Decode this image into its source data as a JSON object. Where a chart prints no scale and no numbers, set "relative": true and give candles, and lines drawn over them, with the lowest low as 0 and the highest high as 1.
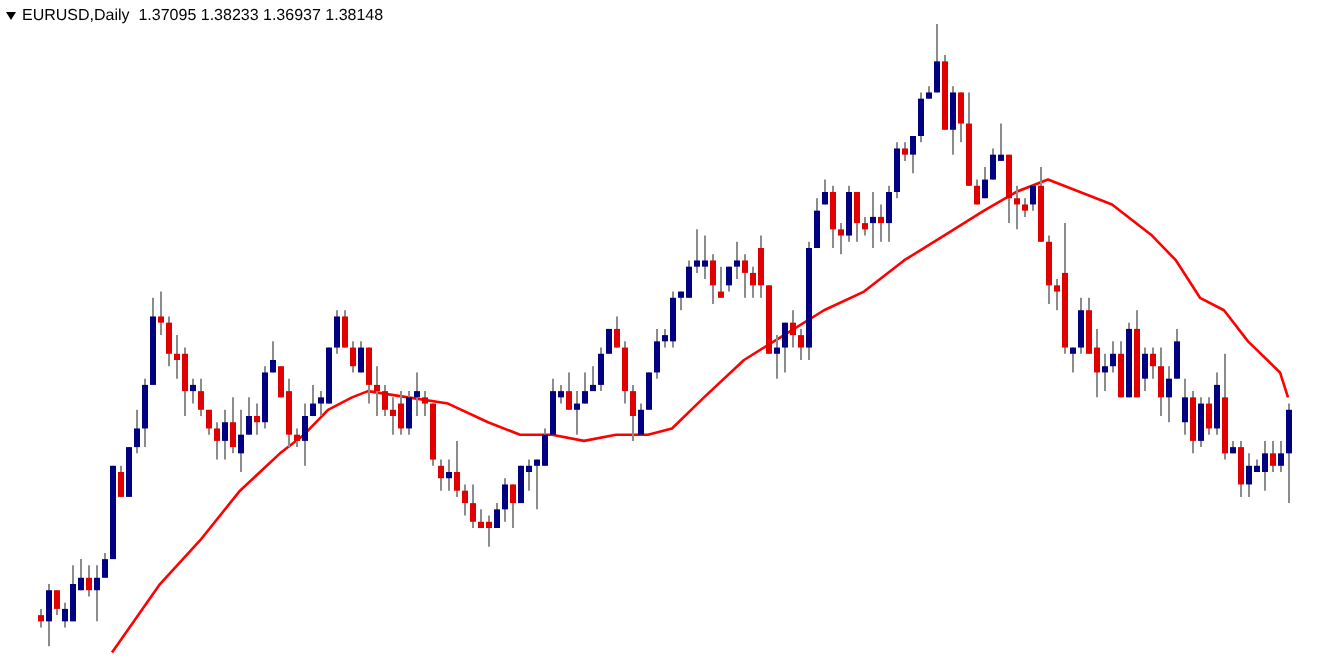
{
  "chart_data": {
    "type": "candlestick",
    "title": "EURUSD,Daily  1.37095 1.38233 1.36937 1.38148",
    "relative": true,
    "categories": [
      null,
      null,
      null,
      null,
      null,
      null,
      null,
      null,
      null,
      null,
      null,
      null,
      null,
      null,
      null,
      null,
      null,
      null,
      null,
      null,
      null,
      null,
      null,
      null,
      null,
      null,
      null,
      null,
      null,
      null,
      null,
      null,
      null,
      null,
      null,
      null,
      null,
      null,
      null,
      null,
      null,
      null,
      null,
      null,
      null,
      null,
      null,
      null,
      null,
      null,
      null,
      null,
      null,
      null,
      null,
      null,
      null,
      null,
      null,
      null,
      null,
      null,
      null,
      null,
      null,
      null,
      null,
      null,
      null,
      null,
      null,
      null,
      null,
      null,
      null,
      null,
      null,
      null,
      null,
      null,
      null,
      null,
      null,
      null,
      null,
      null,
      null,
      null,
      null,
      null,
      null,
      null,
      null,
      null,
      null,
      null,
      null,
      null,
      null,
      null,
      null,
      null,
      null,
      null,
      null,
      null,
      null,
      null,
      null,
      null,
      null,
      null,
      null,
      null,
      null,
      null,
      null,
      null,
      null,
      null,
      null,
      null,
      null,
      null,
      null,
      null,
      null,
      null,
      null,
      null,
      null,
      null,
      null,
      null,
      null,
      null,
      null,
      null,
      null,
      null,
      null,
      null,
      null,
      null,
      null,
      null,
      null,
      null,
      null,
      null,
      null,
      null,
      null,
      null,
      null,
      null,
      null
    ],
    "series": [
      {
        "colors": [
          "#e00000",
          "#000080",
          "#e00000",
          "#000080",
          "#000080",
          "#000080",
          "#e00000",
          "#000080",
          "#000080",
          "#000080",
          "#e00000",
          "#000080",
          "#000080",
          "#000080",
          "#000080",
          "#e00000",
          "#e00000",
          "#e00000",
          "#e00000",
          "#000080",
          "#e00000",
          "#e00000",
          "#e00000",
          "#000080",
          "#e00000",
          "#000080",
          "#000080",
          "#e00000",
          "#000080",
          "#000080",
          "#e00000",
          "#e00000",
          "#e00000",
          "#000080",
          "#000080",
          "#000080",
          "#000080",
          "#000080",
          "#e00000",
          "#e00000",
          "#000080",
          "#e00000",
          "#e00000",
          "#e00000",
          "#e00000",
          "#e00000",
          "#000080",
          "#000080",
          "#e00000",
          "#e00000",
          "#e00000",
          "#000080",
          "#e00000",
          "#e00000",
          "#e00000",
          "#e00000",
          "#e00000",
          "#000080",
          "#000080",
          "#e00000",
          "#000080",
          "#000080",
          "#000080",
          "#000080",
          "#000080",
          "#000080",
          "#e00000",
          "#000080",
          "#000080",
          "#000080",
          "#000080",
          "#000080",
          "#e00000",
          "#e00000",
          "#e00000",
          "#000080",
          "#000080",
          "#000080",
          "#000080",
          "#000080",
          "#000080",
          "#000080",
          "#000080",
          "#000080",
          "#e00000",
          "#e00000",
          "#000080",
          "#000080",
          "#e00000",
          "#e00000",
          "#e00000",
          "#e00000",
          "#000080",
          "#000080",
          "#e00000",
          "#e00000",
          "#000080",
          "#000080",
          "#000080",
          "#e00000",
          "#e00000",
          "#000080",
          "#e00000",
          "#e00000",
          "#000080",
          "#e00000",
          "#000080",
          "#000080",
          "#e00000",
          "#000080",
          "#000080",
          "#000080",
          "#000080",
          "#e00000",
          "#000080",
          "#e00000",
          "#e00000",
          "#e00000",
          "#000080",
          "#000080",
          "#000080",
          "#e00000",
          "#e00000",
          "#e00000",
          "#000080",
          "#e00000",
          "#e00000",
          "#e00000",
          "#e00000",
          "#000080",
          "#000080",
          "#e00000",
          "#e00000",
          "#000080",
          "#000080",
          "#e00000",
          "#000080",
          "#e00000",
          "#000080",
          "#e00000",
          "#e00000",
          "#000080",
          "#000080",
          "#000080",
          "#e00000",
          "#000080",
          "#e00000",
          "#000080",
          "#e00000",
          "#000080",
          "#e00000",
          "#000080",
          "#000080",
          "#000080",
          "#e00000",
          "#000080",
          "#000080"
        ],
        "ohlc": [
          [
            0.05,
            0.06,
            0.03,
            0.04
          ],
          [
            0.04,
            0.1,
            0,
            0.09
          ],
          [
            0.09,
            0.09,
            0.05,
            0.06
          ],
          [
            0.04,
            0.07,
            0.03,
            0.06
          ],
          [
            0.04,
            0.13,
            0.04,
            0.1
          ],
          [
            0.09,
            0.14,
            0.09,
            0.11
          ],
          [
            0.11,
            0.13,
            0.08,
            0.09
          ],
          [
            0.09,
            0.13,
            0.04,
            0.11
          ],
          [
            0.11,
            0.15,
            0.11,
            0.14
          ],
          [
            0.14,
            0.29,
            0.14,
            0.29
          ],
          [
            0.28,
            0.29,
            0.24,
            0.24
          ],
          [
            0.24,
            0.32,
            0.24,
            0.32
          ],
          [
            0.32,
            0.38,
            0.31,
            0.35
          ],
          [
            0.35,
            0.43,
            0.32,
            0.42
          ],
          [
            0.42,
            0.56,
            0.42,
            0.53
          ],
          [
            0.53,
            0.57,
            0.5,
            0.52
          ],
          [
            0.52,
            0.53,
            0.45,
            0.47
          ],
          [
            0.47,
            0.5,
            0.43,
            0.46
          ],
          [
            0.47,
            0.48,
            0.37,
            0.41
          ],
          [
            0.41,
            0.43,
            0.39,
            0.42
          ],
          [
            0.41,
            0.43,
            0.37,
            0.38
          ],
          [
            0.38,
            0.38,
            0.34,
            0.35
          ],
          [
            0.35,
            0.36,
            0.3,
            0.33
          ],
          [
            0.33,
            0.38,
            0.3,
            0.36
          ],
          [
            0.36,
            0.4,
            0.31,
            0.32
          ],
          [
            0.31,
            0.38,
            0.28,
            0.34
          ],
          [
            0.34,
            0.4,
            0.34,
            0.37
          ],
          [
            0.37,
            0.39,
            0.34,
            0.36
          ],
          [
            0.36,
            0.45,
            0.35,
            0.44
          ],
          [
            0.44,
            0.49,
            0.44,
            0.46
          ],
          [
            0.45,
            0.45,
            0.4,
            0.4
          ],
          [
            0.41,
            0.43,
            0.32,
            0.34
          ],
          [
            0.34,
            0.35,
            0.32,
            0.33
          ],
          [
            0.33,
            0.39,
            0.29,
            0.37
          ],
          [
            0.37,
            0.42,
            0.37,
            0.39
          ],
          [
            0.39,
            0.41,
            0.37,
            0.4
          ],
          [
            0.39,
            0.48,
            0.39,
            0.48
          ],
          [
            0.48,
            0.54,
            0.47,
            0.53
          ],
          [
            0.53,
            0.54,
            0.48,
            0.48
          ],
          [
            0.48,
            0.49,
            0.44,
            0.45
          ],
          [
            0.44,
            0.49,
            0.44,
            0.48
          ],
          [
            0.48,
            0.48,
            0.39,
            0.42
          ],
          [
            0.42,
            0.45,
            0.37,
            0.41
          ],
          [
            0.41,
            0.42,
            0.37,
            0.38
          ],
          [
            0.38,
            0.4,
            0.34,
            0.37
          ],
          [
            0.39,
            0.41,
            0.34,
            0.35
          ],
          [
            0.35,
            0.41,
            0.34,
            0.4
          ],
          [
            0.4,
            0.44,
            0.37,
            0.41
          ],
          [
            0.4,
            0.41,
            0.37,
            0.39
          ],
          [
            0.39,
            0.39,
            0.29,
            0.3
          ],
          [
            0.29,
            0.3,
            0.25,
            0.27
          ],
          [
            0.27,
            0.3,
            0.25,
            0.28
          ],
          [
            0.28,
            0.33,
            0.24,
            0.25
          ],
          [
            0.25,
            0.26,
            0.21,
            0.23
          ],
          [
            0.23,
            0.26,
            0.19,
            0.2
          ],
          [
            0.2,
            0.22,
            0.19,
            0.19
          ],
          [
            0.2,
            0.21,
            0.16,
            0.19
          ],
          [
            0.19,
            0.23,
            0.19,
            0.22
          ],
          [
            0.22,
            0.27,
            0.2,
            0.26
          ],
          [
            0.26,
            0.26,
            0.19,
            0.23
          ],
          [
            0.23,
            0.29,
            0.23,
            0.29
          ],
          [
            0.28,
            0.3,
            0.25,
            0.29
          ],
          [
            0.29,
            0.3,
            0.22,
            0.3
          ],
          [
            0.29,
            0.35,
            0.29,
            0.34
          ],
          [
            0.34,
            0.43,
            0.34,
            0.41
          ],
          [
            0.4,
            0.42,
            0.39,
            0.41
          ],
          [
            0.41,
            0.44,
            0.38,
            0.38
          ],
          [
            0.38,
            0.41,
            0.34,
            0.39
          ],
          [
            0.39,
            0.44,
            0.39,
            0.41
          ],
          [
            0.41,
            0.45,
            0.41,
            0.42
          ],
          [
            0.42,
            0.48,
            0.41,
            0.47
          ],
          [
            0.47,
            0.51,
            0.47,
            0.51
          ],
          [
            0.51,
            0.53,
            0.48,
            0.48
          ],
          [
            0.48,
            0.49,
            0.39,
            0.41
          ],
          [
            0.41,
            0.42,
            0.33,
            0.37
          ],
          [
            0.34,
            0.39,
            0.34,
            0.38
          ],
          [
            0.38,
            0.44,
            0.38,
            0.44
          ],
          [
            0.44,
            0.51,
            0.43,
            0.49
          ],
          [
            0.49,
            0.51,
            0.48,
            0.5
          ],
          [
            0.49,
            0.57,
            0.48,
            0.56
          ],
          [
            0.56,
            0.57,
            0.54,
            0.57
          ],
          [
            0.56,
            0.62,
            0.56,
            0.61
          ],
          [
            0.61,
            0.67,
            0.6,
            0.62
          ],
          [
            0.61,
            0.66,
            0.59,
            0.62
          ],
          [
            0.62,
            0.63,
            0.55,
            0.58
          ],
          [
            0.57,
            0.61,
            0.56,
            0.56
          ],
          [
            0.58,
            0.61,
            0.57,
            0.61
          ],
          [
            0.61,
            0.65,
            0.59,
            0.62
          ],
          [
            0.62,
            0.63,
            0.56,
            0.6
          ],
          [
            0.6,
            0.61,
            0.56,
            0.58
          ],
          [
            0.64,
            0.66,
            0.56,
            0.58
          ],
          [
            0.58,
            0.58,
            0.47,
            0.47
          ],
          [
            0.47,
            0.5,
            0.43,
            0.48
          ],
          [
            0.48,
            0.52,
            0.44,
            0.52
          ],
          [
            0.52,
            0.54,
            0.48,
            0.5
          ],
          [
            0.5,
            0.51,
            0.46,
            0.48
          ],
          [
            0.48,
            0.65,
            0.46,
            0.64
          ],
          [
            0.64,
            0.72,
            0.64,
            0.7
          ],
          [
            0.71,
            0.75,
            0.71,
            0.73
          ],
          [
            0.73,
            0.74,
            0.64,
            0.67
          ],
          [
            0.67,
            0.68,
            0.63,
            0.66
          ],
          [
            0.66,
            0.74,
            0.65,
            0.73
          ],
          [
            0.73,
            0.73,
            0.65,
            0.68
          ],
          [
            0.68,
            0.69,
            0.66,
            0.67
          ],
          [
            0.68,
            0.73,
            0.64,
            0.69
          ],
          [
            0.69,
            0.71,
            0.65,
            0.68
          ],
          [
            0.68,
            0.74,
            0.65,
            0.73
          ],
          [
            0.73,
            0.81,
            0.72,
            0.8
          ],
          [
            0.8,
            0.81,
            0.78,
            0.79
          ],
          [
            0.79,
            0.82,
            0.76,
            0.82
          ],
          [
            0.82,
            0.89,
            0.81,
            0.88
          ],
          [
            0.88,
            0.9,
            0.88,
            0.89
          ],
          [
            0.89,
            1,
            0.89,
            0.94
          ],
          [
            0.94,
            0.95,
            0.83,
            0.83
          ],
          [
            0.83,
            0.9,
            0.79,
            0.89
          ],
          [
            0.89,
            0.89,
            0.81,
            0.84
          ],
          [
            0.84,
            0.89,
            0.74,
            0.74
          ],
          [
            0.74,
            0.75,
            0.71,
            0.71
          ],
          [
            0.72,
            0.77,
            0.72,
            0.75
          ],
          [
            0.75,
            0.8,
            0.75,
            0.79
          ],
          [
            0.78,
            0.84,
            0.78,
            0.79
          ],
          [
            0.79,
            0.79,
            0.68,
            0.72
          ],
          [
            0.72,
            0.74,
            0.67,
            0.71
          ],
          [
            0.71,
            0.72,
            0.69,
            0.7
          ],
          [
            0.71,
            0.74,
            0.7,
            0.74
          ],
          [
            0.74,
            0.77,
            0.65,
            0.65
          ],
          [
            0.65,
            0.66,
            0.55,
            0.58
          ],
          [
            0.58,
            0.59,
            0.54,
            0.57
          ],
          [
            0.6,
            0.68,
            0.47,
            0.48
          ],
          [
            0.47,
            0.48,
            0.44,
            0.48
          ],
          [
            0.48,
            0.56,
            0.47,
            0.54
          ],
          [
            0.54,
            0.56,
            0.47,
            0.47
          ],
          [
            0.48,
            0.51,
            0.4,
            0.44
          ],
          [
            0.44,
            0.47,
            0.41,
            0.45
          ],
          [
            0.45,
            0.49,
            0.44,
            0.47
          ],
          [
            0.47,
            0.49,
            0.4,
            0.4
          ],
          [
            0.4,
            0.52,
            0.4,
            0.51
          ],
          [
            0.51,
            0.54,
            0.4,
            0.4
          ],
          [
            0.43,
            0.48,
            0.41,
            0.47
          ],
          [
            0.47,
            0.48,
            0.43,
            0.45
          ],
          [
            0.45,
            0.48,
            0.37,
            0.4
          ],
          [
            0.4,
            0.45,
            0.36,
            0.43
          ],
          [
            0.43,
            0.51,
            0.43,
            0.49
          ],
          [
            0.36,
            0.43,
            0.34,
            0.4
          ],
          [
            0.4,
            0.41,
            0.31,
            0.33
          ],
          [
            0.33,
            0.4,
            0.32,
            0.39
          ],
          [
            0.39,
            0.4,
            0.34,
            0.35
          ],
          [
            0.35,
            0.44,
            0.34,
            0.42
          ],
          [
            0.4,
            0.47,
            0.3,
            0.31
          ],
          [
            0.31,
            0.33,
            0.31,
            0.32
          ],
          [
            0.32,
            0.33,
            0.24,
            0.26
          ],
          [
            0.26,
            0.31,
            0.24,
            0.29
          ],
          [
            0.28,
            0.3,
            0.28,
            0.29
          ],
          [
            0.28,
            0.33,
            0.25,
            0.31
          ],
          [
            0.31,
            0.33,
            0.28,
            0.29
          ],
          [
            0.29,
            0.33,
            0.28,
            0.31
          ],
          [
            0.31,
            0.39,
            0.23,
            0.38
          ]
        ]
      },
      {
        "type": "line",
        "color": "#ff0000",
        "values": [
          null,
          null,
          null,
          null,
          null,
          null,
          null,
          null,
          null,
          -0.01,
          null,
          null,
          null,
          null,
          null,
          0.1,
          null,
          null,
          null,
          null,
          0.17,
          null,
          null,
          null,
          null,
          0.25,
          null,
          null,
          null,
          null,
          0.31,
          null,
          null,
          0.34,
          null,
          null,
          0.38,
          null,
          null,
          0.4,
          null,
          0.41,
          null,
          null,
          null,
          null,
          0.4,
          null,
          null,
          null,
          null,
          0.39,
          null,
          null,
          null,
          null,
          0.36,
          null,
          null,
          null,
          0.34,
          null,
          null,
          null,
          0.34,
          null,
          null,
          null,
          0.33,
          null,
          null,
          null,
          0.34,
          null,
          null,
          null,
          0.34,
          null,
          null,
          0.35,
          null,
          null,
          null,
          0.4,
          null,
          null,
          null,
          null,
          0.46,
          null,
          null,
          null,
          null,
          0.5,
          null,
          null,
          null,
          null,
          0.54,
          null,
          null,
          null,
          null,
          0.57,
          null,
          null,
          null,
          null,
          0.62,
          null,
          null,
          null,
          null,
          0.66,
          null,
          null,
          null,
          null,
          0.7,
          null,
          null,
          null,
          0.73,
          null,
          null,
          null,
          0.75,
          null,
          null,
          null,
          0.73,
          null,
          null,
          null,
          0.71,
          null,
          null,
          null,
          null,
          0.66,
          null,
          null,
          0.62,
          null,
          null,
          0.56,
          null,
          null,
          0.54,
          null,
          null,
          0.49,
          null,
          null,
          null,
          0.44,
          0.4
        ]
      }
    ]
  }
}
